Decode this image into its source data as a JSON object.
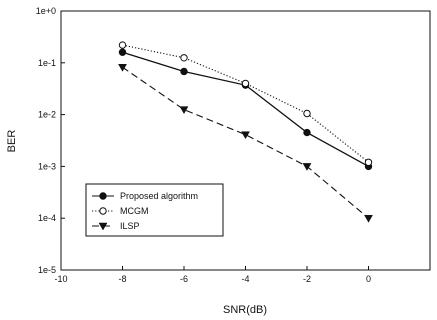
{
  "chart_data": {
    "type": "line",
    "xlabel": "SNR(dB)",
    "ylabel": "BER",
    "xlim": [
      -10,
      2
    ],
    "ylim": [
      1e-05,
      1
    ],
    "yscale": "log",
    "xticks": [
      -10,
      -8,
      -6,
      -4,
      -2,
      0
    ],
    "xtick_labels": [
      "-10",
      "-8",
      "-6",
      "-4",
      "-2",
      "0"
    ],
    "yticks": [
      1e-05,
      0.0001,
      0.001,
      0.01,
      0.1,
      1
    ],
    "ytick_labels": [
      "1e-5",
      "1e-4",
      "1e-3",
      "1e-2",
      "1e-1",
      "1e+0"
    ],
    "grid": false,
    "legend_position": "bottom-left",
    "x": [
      -8,
      -6,
      -4,
      -2,
      0
    ],
    "series": [
      {
        "name": "Proposed algorithm",
        "values": [
          0.16,
          0.068,
          0.037,
          0.0045,
          0.001
        ],
        "color": "#111111",
        "line_style": "solid",
        "marker": "filled-circle"
      },
      {
        "name": "MCGM",
        "values": [
          0.22,
          0.125,
          0.04,
          0.0105,
          0.0012
        ],
        "color": "#111111",
        "line_style": "dotted",
        "marker": "open-circle"
      },
      {
        "name": "ILSP",
        "values": [
          0.082,
          0.0125,
          0.0041,
          0.001,
          0.0001
        ],
        "color": "#111111",
        "line_style": "dashed",
        "marker": "filled-triangle-down"
      }
    ]
  }
}
